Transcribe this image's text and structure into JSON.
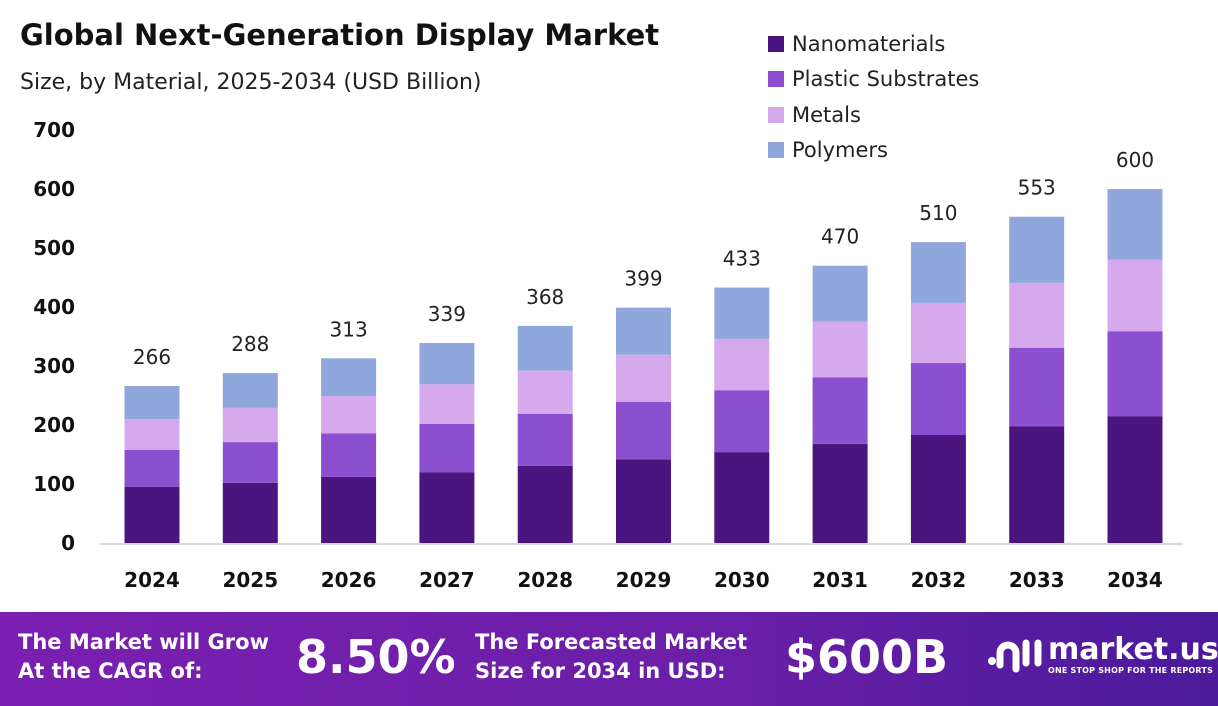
{
  "chart_data": {
    "type": "bar",
    "stacked": true,
    "title": "Global Next-Generation Display Market",
    "subtitle": "Size, by Material, 2025-2034 (USD Billion)",
    "categories": [
      "2024",
      "2025",
      "2026",
      "2027",
      "2028",
      "2029",
      "2030",
      "2031",
      "2032",
      "2033",
      "2034"
    ],
    "series": [
      {
        "name": "Nanomaterials",
        "color": "#4b1580",
        "values": [
          95,
          102,
          112,
          120,
          131,
          142,
          154,
          168,
          183,
          198,
          215
        ]
      },
      {
        "name": "Plastic Substrates",
        "color": "#8b4fcf",
        "values": [
          63,
          69,
          74,
          82,
          88,
          97,
          105,
          113,
          122,
          133,
          144
        ]
      },
      {
        "name": "Metals",
        "color": "#d5a9ec",
        "values": [
          52,
          58,
          63,
          67,
          73,
          80,
          87,
          94,
          102,
          110,
          121
        ]
      },
      {
        "name": "Polymers",
        "color": "#8fa7dc",
        "values": [
          56,
          59,
          64,
          70,
          76,
          80,
          87,
          95,
          103,
          112,
          120
        ]
      }
    ],
    "totals": [
      "266",
      "288",
      "313",
      "339",
      "368",
      "399",
      "433",
      "470",
      "510",
      "553",
      "600"
    ],
    "yticks": [
      "0",
      "100",
      "200",
      "300",
      "400",
      "500",
      "600",
      "700"
    ],
    "ylim": [
      0,
      700
    ],
    "grid": false,
    "legend": "top-right"
  },
  "footer": {
    "cagr_label_1": "The Market will Grow",
    "cagr_label_2": "At the CAGR of:",
    "cagr_value": "8.50%",
    "forecast_label_1": "The Forecasted Market",
    "forecast_label_2": "Size for 2034 in USD:",
    "forecast_value": "$600B",
    "logo_name": "market.us",
    "logo_tagline": "ONE STOP SHOP FOR THE REPORTS"
  }
}
